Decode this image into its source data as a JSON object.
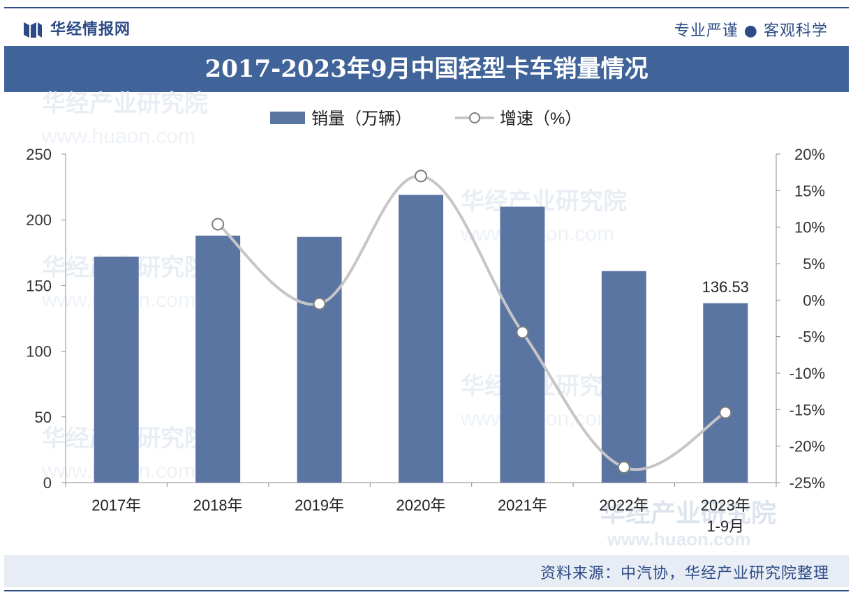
{
  "header": {
    "brand": "华经情报网",
    "slogan": "专业严谨 ● 客观科学"
  },
  "footer": {
    "source": "资料来源：中汽协，华经产业研究院整理"
  },
  "watermarks": [
    "华经产业研究院",
    "www.huaon.com"
  ],
  "colors": {
    "bar": "#5b75a3",
    "line": "#c6c6c6",
    "marker_fill": "#ffffff",
    "marker_stroke": "#7d7d7d",
    "title_bg": "#40649a",
    "brand": "#2c4b86"
  },
  "chart_data": {
    "type": "bar",
    "title": "2017-2023年9月中国轻型卡车销量情况",
    "categories": [
      "2017年",
      "2018年",
      "2019年",
      "2020年",
      "2021年",
      "2022年",
      "2023年1-9月"
    ],
    "series": [
      {
        "name": "销量（万辆）",
        "type": "bar",
        "axis": "left",
        "values": [
          172,
          188,
          187,
          219,
          210,
          161,
          136.53
        ],
        "data_labels": [
          null,
          null,
          null,
          null,
          null,
          null,
          "136.53"
        ]
      },
      {
        "name": "增速（%）",
        "type": "line",
        "axis": "right",
        "values": [
          null,
          10.4,
          -0.5,
          17.0,
          -4.4,
          -22.9,
          -15.4
        ]
      }
    ],
    "left_axis": {
      "min": 0,
      "max": 250,
      "ticks": [
        "0",
        "50",
        "100",
        "150",
        "200",
        "250"
      ]
    },
    "right_axis": {
      "min": -25,
      "max": 20,
      "ticks": [
        "-25%",
        "-20%",
        "-15%",
        "-10%",
        "-5%",
        "0%",
        "5%",
        "10%",
        "15%",
        "20%"
      ]
    },
    "legend": {
      "position": "top",
      "items": [
        "销量（万辆）",
        "增速（%）"
      ]
    },
    "grid": false
  }
}
